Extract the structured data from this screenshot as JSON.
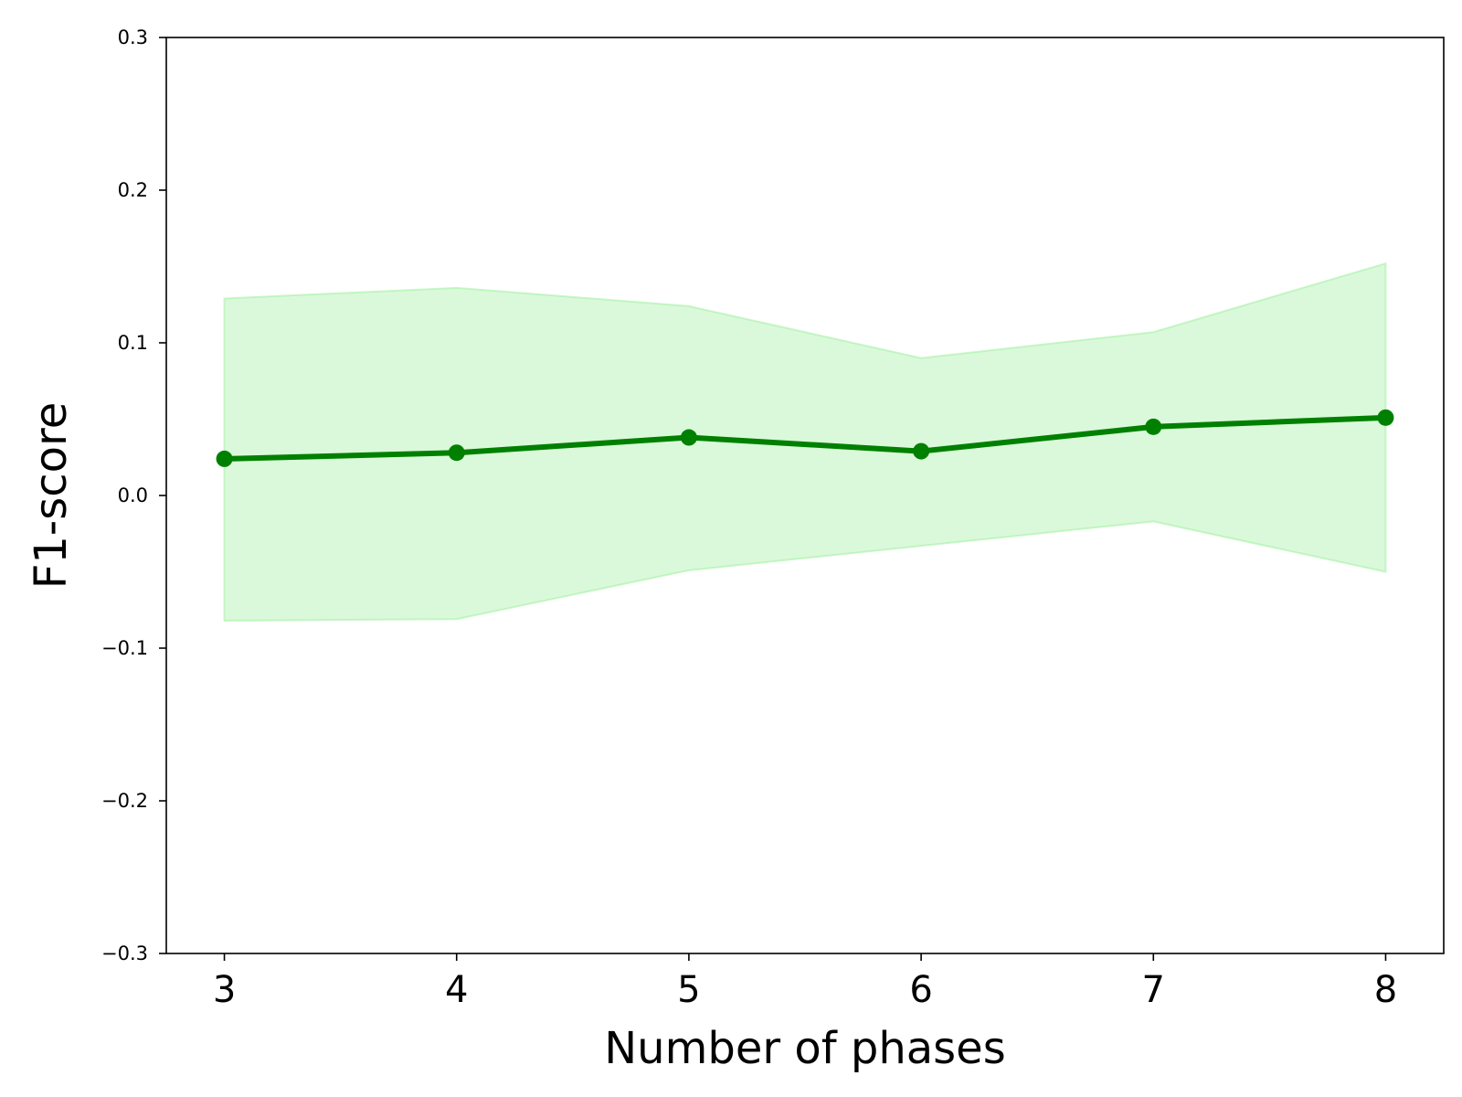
{
  "chart_data": {
    "type": "line",
    "xlabel": "Number of phases",
    "ylabel": "F1-score",
    "x": [
      3,
      4,
      5,
      6,
      7,
      8
    ],
    "xlim": [
      2.75,
      8.25
    ],
    "ylim": [
      -0.3,
      0.3
    ],
    "x_ticks": [
      "3",
      "4",
      "5",
      "6",
      "7",
      "8"
    ],
    "y_ticks": [
      "0.3",
      "0.2",
      "0.1",
      "0.0",
      "−0.1",
      "−0.2",
      "−0.3"
    ],
    "y_tick_values": [
      0.3,
      0.2,
      0.1,
      0.0,
      -0.1,
      -0.2,
      -0.3
    ],
    "series": [
      {
        "values": [
          0.024,
          0.028,
          0.038,
          0.029,
          0.045,
          0.051
        ],
        "band_upper": [
          0.129,
          0.136,
          0.124,
          0.09,
          0.107,
          0.152
        ],
        "band_lower": [
          -0.082,
          -0.081,
          -0.049,
          -0.033,
          -0.017,
          -0.05
        ]
      }
    ],
    "grid": false,
    "colors": {
      "line": "#008000",
      "band_fill": "#90ee90",
      "band_edge": "#90ee90"
    }
  }
}
